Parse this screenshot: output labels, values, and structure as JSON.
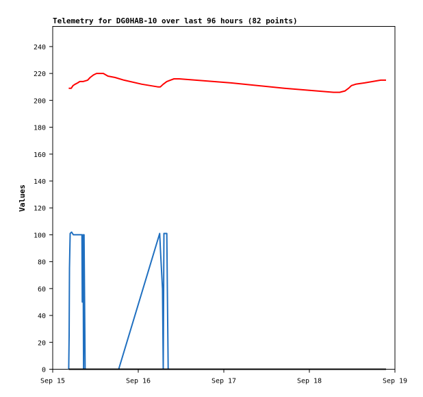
{
  "chart_data": {
    "type": "line",
    "title": "Telemetry for DG0HAB-10 over last 96 hours (82 points)",
    "xlabel": "",
    "ylabel": "Values",
    "ylim": [
      0,
      255
    ],
    "yticks": [
      0,
      20,
      40,
      60,
      80,
      100,
      120,
      140,
      160,
      180,
      200,
      220,
      240
    ],
    "xticks": [
      {
        "label": "Sep 15",
        "t": 0
      },
      {
        "label": "Sep 16",
        "t": 24
      },
      {
        "label": "Sep 17",
        "t": 48
      },
      {
        "label": "Sep 18",
        "t": 72
      },
      {
        "label": "Sep 19",
        "t": 96
      }
    ],
    "xlim_hours": [
      0,
      96
    ],
    "grid": false,
    "legend": "none",
    "series": [
      {
        "color": "#ff0000",
        "points": [
          [
            4.5,
            209
          ],
          [
            5.2,
            209
          ],
          [
            5.7,
            211
          ],
          [
            6.3,
            212
          ],
          [
            7.0,
            213
          ],
          [
            7.6,
            214
          ],
          [
            8.5,
            214
          ],
          [
            9.8,
            215
          ],
          [
            10.5,
            217
          ],
          [
            11.5,
            219
          ],
          [
            12.3,
            220
          ],
          [
            14.2,
            220
          ],
          [
            15.5,
            218
          ],
          [
            17.5,
            217
          ],
          [
            20.0,
            215
          ],
          [
            25.0,
            212
          ],
          [
            29.5,
            210
          ],
          [
            30.2,
            210
          ],
          [
            31.0,
            212
          ],
          [
            32.0,
            214
          ],
          [
            33.0,
            215
          ],
          [
            34.0,
            216
          ],
          [
            35.5,
            216
          ],
          [
            50.0,
            213
          ],
          [
            65.0,
            209
          ],
          [
            78.8,
            206
          ],
          [
            80.5,
            206
          ],
          [
            82.0,
            207
          ],
          [
            83.0,
            209
          ],
          [
            83.8,
            211
          ],
          [
            85.0,
            212
          ],
          [
            87.5,
            213
          ],
          [
            92.0,
            215
          ],
          [
            93.5,
            215
          ]
        ]
      },
      {
        "color": "#1f6fc0",
        "points": [
          [
            4.5,
            0
          ],
          [
            4.6,
            25
          ],
          [
            4.7,
            75
          ],
          [
            4.9,
            101
          ],
          [
            5.3,
            102
          ],
          [
            5.8,
            100
          ],
          [
            8.2,
            100
          ],
          [
            8.3,
            50
          ],
          [
            8.5,
            100
          ],
          [
            8.65,
            0
          ],
          [
            8.8,
            100
          ],
          [
            8.95,
            50
          ],
          [
            9.1,
            0
          ],
          [
            9.3,
            0
          ],
          [
            18.5,
            0
          ],
          [
            30.0,
            101
          ],
          [
            30.2,
            90
          ],
          [
            30.4,
            80
          ],
          [
            30.8,
            60
          ],
          [
            31.0,
            0
          ],
          [
            31.2,
            101
          ],
          [
            32.0,
            101
          ],
          [
            32.2,
            50
          ],
          [
            32.4,
            0
          ]
        ]
      },
      {
        "color": "#000000",
        "points": [
          [
            4.5,
            0
          ],
          [
            93.5,
            0
          ]
        ]
      }
    ]
  }
}
